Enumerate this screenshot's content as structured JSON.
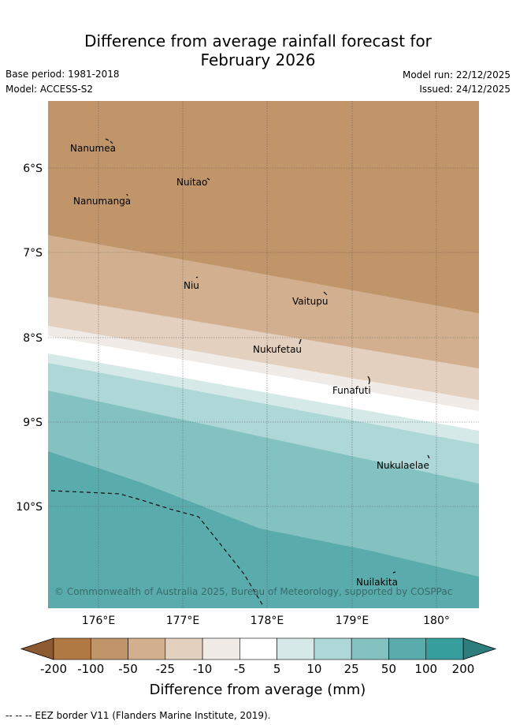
{
  "title_line1": "Difference from average rainfall forecast for",
  "title_line2": "February 2026",
  "base_period": "Base period: 1981-2018",
  "model": "Model: ACCESS-S2",
  "model_run": "Model run: 22/12/2025",
  "issued": "Issued: 24/12/2025",
  "lat_labels": [
    "6°S",
    "7°S",
    "8°S",
    "9°S",
    "10°S"
  ],
  "lon_labels": [
    "176°E",
    "177°E",
    "178°E",
    "179°E",
    "180°"
  ],
  "places": [
    {
      "name": "Nanumea"
    },
    {
      "name": "Nuitao"
    },
    {
      "name": "Nanumanga"
    },
    {
      "name": "Niu"
    },
    {
      "name": "Vaitupu"
    },
    {
      "name": "Nukufetau"
    },
    {
      "name": "Funafuti"
    },
    {
      "name": "Nukulaelae"
    },
    {
      "name": "Nuilakita"
    }
  ],
  "copyright": "© Commonwealth of Australia 2025, Bureau of Meteorology, supported by COSPPac",
  "colorbar": {
    "ticks": [
      "-200",
      "-100",
      "-50",
      "-25",
      "-10",
      "-5",
      "5",
      "10",
      "25",
      "50",
      "100",
      "200"
    ],
    "colors": [
      "#b07842",
      "#c0956a",
      "#d2b08f",
      "#e3d0bf",
      "#f0ebe6",
      "#ffffff",
      "#d4e9e8",
      "#aed7d7",
      "#84c2c2",
      "#5aabab",
      "#379e9e"
    ],
    "under_color": "#8c5a30",
    "over_color": "#2e7d7d",
    "label": "Difference from average (mm)"
  },
  "footer": "--  --  -- EEZ border V11 (Flanders Marine Institute, 2019)."
}
